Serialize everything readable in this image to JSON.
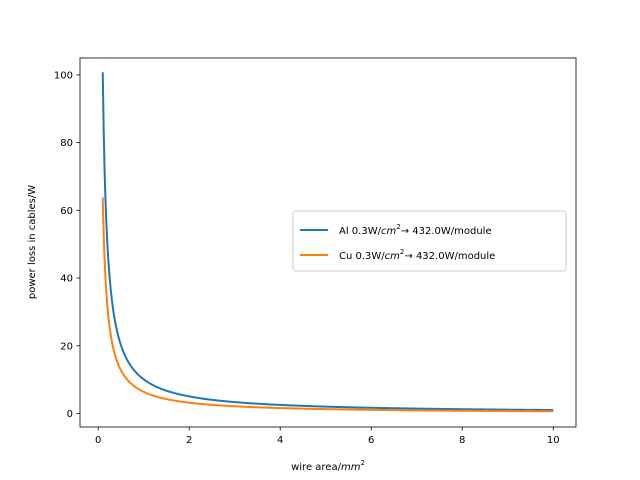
{
  "chart_data": {
    "type": "line",
    "title": "",
    "xlabel": {
      "prefix": "wire area/",
      "unit": "mm",
      "sup": "2"
    },
    "ylabel": "power loss in cables/W",
    "xlim": [
      -0.4,
      10.5
    ],
    "ylim": [
      -4.0,
      105.0
    ],
    "xticks": [
      0,
      2,
      4,
      6,
      8,
      10
    ],
    "yticks": [
      0,
      20,
      40,
      60,
      80,
      100
    ],
    "grid": false,
    "legend_position": "center-right",
    "series": [
      {
        "name": "Al 0.3W/cm²→ 432.0W/module",
        "legend": {
          "prefix": "Al 0.3W/",
          "unit": "cm",
          "sup": "2",
          "suffix": "→ 432.0W/module"
        },
        "color": "#1f77b4",
        "coefficient": 10.08,
        "x_range": [
          0.1,
          10
        ]
      },
      {
        "name": "Cu 0.3W/cm²→ 432.0W/module",
        "legend": {
          "prefix": "Cu 0.3W/",
          "unit": "cm",
          "sup": "2",
          "suffix": "→ 432.0W/module"
        },
        "color": "#ff7f0e",
        "coefficient": 6.38,
        "x_range": [
          0.1,
          10
        ]
      }
    ],
    "sample_points": [
      {
        "x": 0.1,
        "Al": 100.8,
        "Cu": 63.8
      },
      {
        "x": 0.5,
        "Al": 20.2,
        "Cu": 12.8
      },
      {
        "x": 1,
        "Al": 10.1,
        "Cu": 6.4
      },
      {
        "x": 2,
        "Al": 5.0,
        "Cu": 3.2
      },
      {
        "x": 4,
        "Al": 2.5,
        "Cu": 1.6
      },
      {
        "x": 6,
        "Al": 1.7,
        "Cu": 1.1
      },
      {
        "x": 8,
        "Al": 1.3,
        "Cu": 0.8
      },
      {
        "x": 10,
        "Al": 1.0,
        "Cu": 0.6
      }
    ]
  }
}
